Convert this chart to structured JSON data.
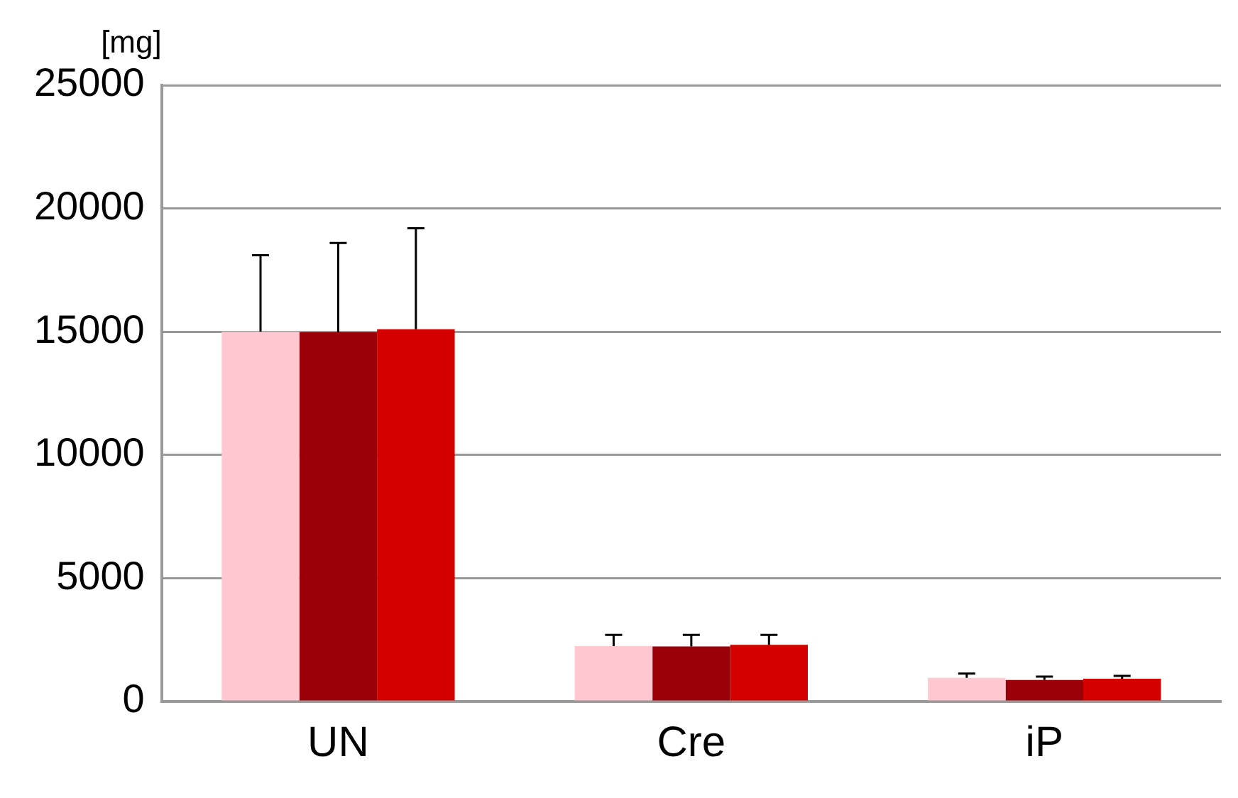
{
  "chart_data": {
    "type": "bar",
    "ylabel": "[mg]",
    "categories": [
      "UN",
      "Cre",
      "iP"
    ],
    "series": [
      {
        "color": "#ffc8d0",
        "values": [
          15000,
          2250,
          960
        ],
        "errors": [
          [
            15000,
            18100
          ],
          [
            2250,
            2700
          ],
          [
            960,
            1130
          ]
        ]
      },
      {
        "color": "#9b0008",
        "values": [
          14980,
          2230,
          870
        ],
        "errors": [
          [
            14980,
            18600
          ],
          [
            2230,
            2700
          ],
          [
            870,
            1010
          ]
        ]
      },
      {
        "color": "#d40000",
        "values": [
          15100,
          2300,
          920
        ],
        "errors": [
          [
            15100,
            19200
          ],
          [
            2300,
            2700
          ],
          [
            920,
            1040
          ]
        ]
      }
    ],
    "ylim": [
      0,
      25000
    ],
    "yticks": [
      0,
      5000,
      10000,
      15000,
      20000,
      25000
    ],
    "grid": "y",
    "legend": false
  }
}
